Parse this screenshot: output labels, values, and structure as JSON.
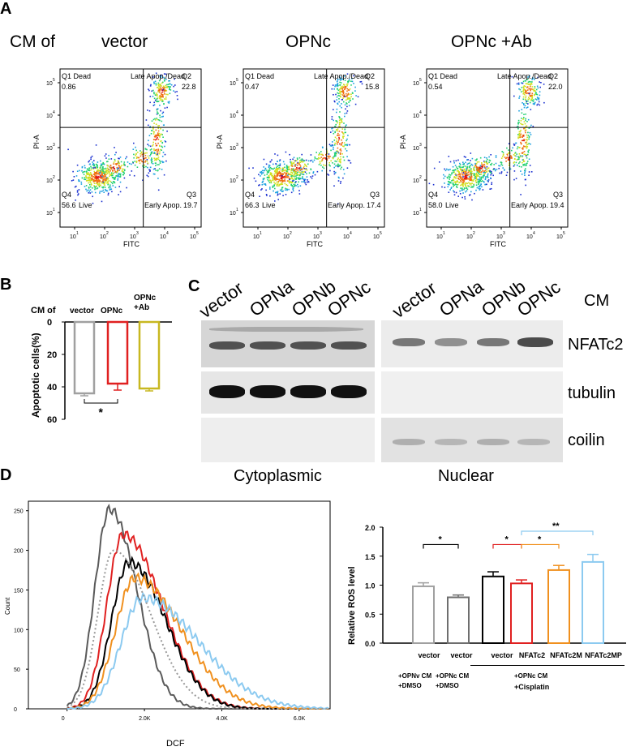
{
  "panelA": {
    "letter": "A",
    "cm_label": "CM of",
    "plots": [
      {
        "title": "vector",
        "q1_label": "Q1 Dead",
        "q1_value": "0.86",
        "q2_label": "Late Apop./Dead",
        "q2_id": "Q2",
        "q2_value": "22.8",
        "q4_id": "Q4",
        "q4_value": "56.6",
        "q4_label": "Live",
        "q3_label": "Early Apop.",
        "q3_id": "Q3",
        "q3_value": "19.7"
      },
      {
        "title": "OPNc",
        "q1_label": "Q1 Dead",
        "q1_value": "0.47",
        "q2_label": "Late Apop./Dead",
        "q2_id": "Q2",
        "q2_value": "15.8",
        "q4_id": "Q4",
        "q4_value": "66.3",
        "q4_label": "Live",
        "q3_label": "Early Apop.",
        "q3_id": "Q3",
        "q3_value": "17.4"
      },
      {
        "title": "OPNc +Ab",
        "q1_label": "Q1 Dead",
        "q1_value": "0.54",
        "q2_label": "Late Apop./Dead",
        "q2_id": "Q2",
        "q2_value": "22.0",
        "q4_id": "Q4",
        "q4_value": "58.0",
        "q4_label": "Live",
        "q3_label": "Early Apop.",
        "q3_id": "Q3",
        "q3_value": "19.4"
      }
    ],
    "x_axis_label": "FITC",
    "y_axis_label": "PI-A",
    "tick_labels": [
      "10",
      "1",
      "10",
      "2",
      "10",
      "3",
      "10",
      "4",
      "10",
      "5"
    ]
  },
  "panelB": {
    "letter": "B",
    "cm_label": "CM of",
    "ylabel": "Apoptotic cells(%)",
    "significance": "*"
  },
  "panelC": {
    "letter": "C",
    "lanes_cyto": [
      "vector",
      "OPNa",
      "OPNb",
      "OPNc"
    ],
    "lanes_nuc": [
      "vector",
      "OPNa",
      "OPNb",
      "OPNc"
    ],
    "cm_label": "CM",
    "row_labels": [
      "NFATc2",
      "tubulin",
      "coilin"
    ],
    "fraction_labels": [
      "Cytoplasmic",
      "Nuclear"
    ]
  },
  "panelD": {
    "letter": "D",
    "hist_xlabel": "DCF",
    "hist_ylabel": "Count",
    "bar_ylabel": "Relative ROS level",
    "row1": [
      "vector",
      "vector",
      "vector",
      "NFATc2",
      "NFATc2M",
      "NFATc2MP"
    ],
    "treat1": "+OPNv CM\n+DMSO",
    "treat2": "+OPNc CM\n+DMSO",
    "treat3a": "+OPNc CM",
    "treat3b": "+Cisplatin",
    "sig_labels": [
      "*",
      "*",
      "*",
      "**"
    ]
  },
  "chart_data": [
    {
      "type": "bar",
      "title": "",
      "ylabel": "Apoptotic cells(%)",
      "categories": [
        "vector",
        "OPNc",
        "OPNc\n+Ab"
      ],
      "values": [
        44,
        38,
        41
      ],
      "errors": [
        1.5,
        4,
        1.5
      ],
      "colors": [
        "#a0a0a0",
        "#e02020",
        "#c8b820"
      ],
      "ylim": [
        0,
        60
      ],
      "yticks": [
        "0",
        "20",
        "40",
        "60"
      ],
      "inverted": true,
      "significance": [
        {
          "from": 0,
          "to": 1,
          "label": "*"
        }
      ]
    },
    {
      "type": "line",
      "title": "",
      "xlabel": "DCF",
      "ylabel": "Count",
      "xlim": [
        -1,
        6.8
      ],
      "ylim": [
        0,
        262
      ],
      "xticks": [
        "0",
        "2.0K",
        "4.0K",
        "6.0K"
      ],
      "yticks": [
        "0",
        "50",
        "100",
        "150",
        "200",
        "250"
      ],
      "series": [
        {
          "name": "grey",
          "color": "#5a5a5a",
          "dashed": false,
          "peak_x": 1.1,
          "peak_y": 252,
          "wl": 0.38,
          "wr": 0.7
        },
        {
          "name": "red",
          "color": "#e02020",
          "dashed": false,
          "peak_x": 1.45,
          "peak_y": 220,
          "wl": 0.42,
          "wr": 1.0
        },
        {
          "name": "black",
          "color": "#000000",
          "dashed": false,
          "peak_x": 1.6,
          "peak_y": 185,
          "wl": 0.45,
          "wr": 0.95
        },
        {
          "name": "orange",
          "color": "#f0901e",
          "dashed": false,
          "peak_x": 1.75,
          "peak_y": 165,
          "wl": 0.5,
          "wr": 1.2
        },
        {
          "name": "light-blue",
          "color": "#8ccaf0",
          "dashed": false,
          "peak_x": 1.95,
          "peak_y": 140,
          "wl": 0.55,
          "wr": 1.45
        },
        {
          "name": "grey-dotted",
          "color": "#999999",
          "dashed": true,
          "peak_x": 1.2,
          "peak_y": 200,
          "wl": 0.4,
          "wr": 0.95
        }
      ]
    },
    {
      "type": "bar",
      "title": "",
      "ylabel": "Relative ROS level",
      "categories": [
        "vector",
        "vector",
        "vector",
        "NFATc2",
        "NFATc2M",
        "NFATc2MP"
      ],
      "values": [
        0.98,
        0.79,
        1.15,
        1.03,
        1.26,
        1.4
      ],
      "errors": [
        0.06,
        0.04,
        0.08,
        0.06,
        0.08,
        0.13
      ],
      "colors": [
        "#a0a0a0",
        "#6e6e6e",
        "#000000",
        "#e02020",
        "#f0901e",
        "#8ccaf0"
      ],
      "ylim": [
        0,
        2.0
      ],
      "yticks": [
        "0.0",
        "0.5",
        "1.0",
        "1.5",
        "2.0"
      ],
      "significance": [
        {
          "from": 0,
          "to": 1,
          "label": "*",
          "color": "#000000"
        },
        {
          "from": 2,
          "to": 3,
          "label": "*",
          "color": "#e02020"
        },
        {
          "from": 3,
          "to": 4,
          "label": "*",
          "color": "#f0901e"
        },
        {
          "from": 3,
          "to": 5,
          "label": "**",
          "color": "#8ccaf0"
        }
      ]
    }
  ]
}
